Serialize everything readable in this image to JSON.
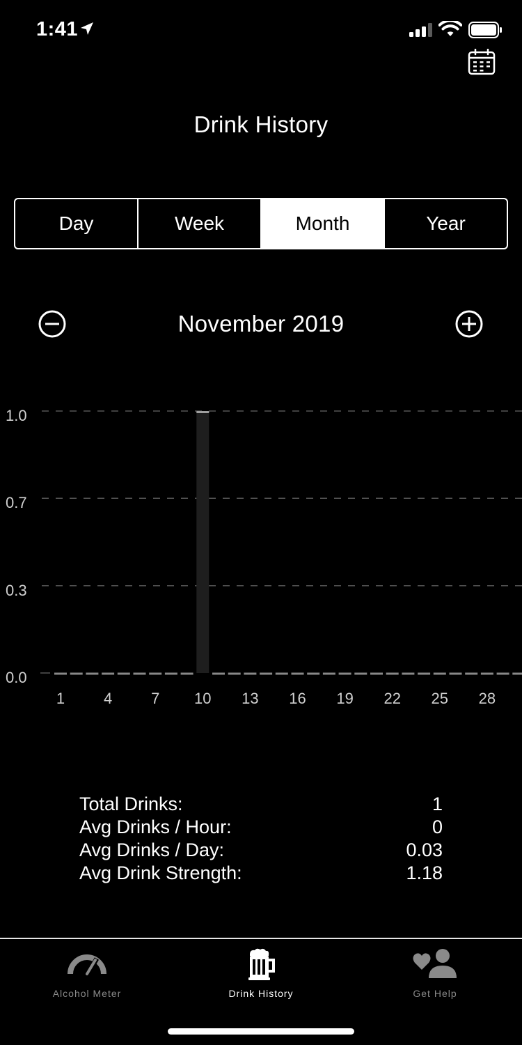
{
  "status_bar": {
    "time": "1:41",
    "icons": [
      "location-arrow-icon",
      "cellular-signal-icon",
      "wifi-icon",
      "battery-icon"
    ]
  },
  "header": {
    "title": "Drink History",
    "calendar_icon": "calendar-icon"
  },
  "segments": [
    {
      "label": "Day",
      "active": false
    },
    {
      "label": "Week",
      "active": false
    },
    {
      "label": "Month",
      "active": true
    },
    {
      "label": "Year",
      "active": false
    }
  ],
  "period": {
    "label": "November 2019",
    "prev_icon": "minus-circle-icon",
    "next_icon": "plus-circle-icon"
  },
  "chart_data": {
    "type": "bar",
    "title": "",
    "xlabel": "",
    "ylabel": "",
    "x": [
      1,
      2,
      3,
      4,
      5,
      6,
      7,
      8,
      9,
      10,
      11,
      12,
      13,
      14,
      15,
      16,
      17,
      18,
      19,
      20,
      21,
      22,
      23,
      24,
      25,
      26,
      27,
      28,
      29,
      30
    ],
    "values": [
      0,
      0,
      0,
      0,
      0,
      0,
      0,
      0,
      0,
      1,
      0,
      0,
      0,
      0,
      0,
      0,
      0,
      0,
      0,
      0,
      0,
      0,
      0,
      0,
      0,
      0,
      0,
      0,
      0,
      0
    ],
    "x_tick_labels": [
      "1",
      "4",
      "7",
      "10",
      "13",
      "16",
      "19",
      "22",
      "25",
      "28"
    ],
    "y_tick_labels": [
      "1.0",
      "0.7",
      "0.3",
      "0.0"
    ],
    "y_ticks": [
      1.0,
      0.667,
      0.333,
      0
    ],
    "ylim": [
      0,
      1
    ],
    "grid": true,
    "colors": {
      "bar": "#1e1e1e",
      "bar_cap": "#a0a0a0",
      "baseline_dash": "#888888",
      "grid": "#555555"
    }
  },
  "stats": [
    {
      "label": "Total Drinks:",
      "value": "1"
    },
    {
      "label": "Avg Drinks / Hour:",
      "value": "0"
    },
    {
      "label": "Avg Drinks / Day:",
      "value": "0.03"
    },
    {
      "label": "Avg Drink Strength:",
      "value": "1.18"
    }
  ],
  "tab_bar": {
    "tabs": [
      {
        "label": "Alcohol Meter",
        "icon": "gauge-icon",
        "active": false
      },
      {
        "label": "Drink History",
        "icon": "beer-mug-icon",
        "active": true
      },
      {
        "label": "Get Help",
        "icon": "heart-person-icon",
        "active": false
      }
    ]
  }
}
